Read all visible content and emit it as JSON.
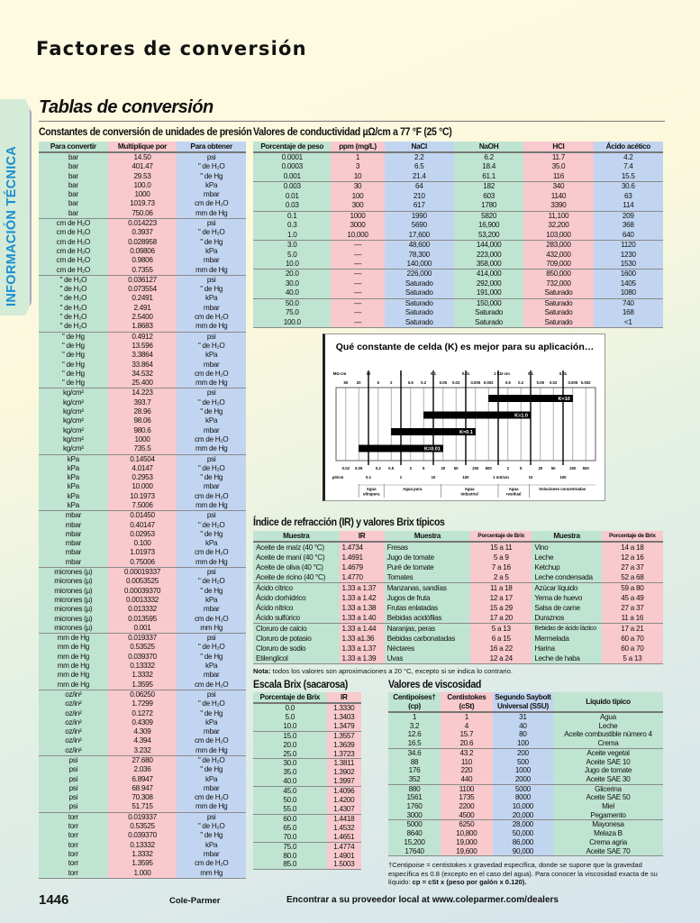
{
  "page": {
    "title": "Factores de conversión",
    "subtitle": "Tablas de conversión",
    "side_tab": "INFORMACIÓN TÉCNICA",
    "page_number": "1446",
    "brand": "Cole-Parmer",
    "footer_link": "Encontrar a su proveedor local at www.coleparmer.com/dealers"
  },
  "colors": {
    "green": "#bfe4d1",
    "pink": "#f8c9cd",
    "blue": "#c2d5f0",
    "side_tab_text": "#1a8fd0"
  },
  "pressure": {
    "title": "Constantes de conversión de unidades de presión",
    "headers": [
      "Para convertir",
      "Multiplique por",
      "Para obtener"
    ],
    "groups": [
      {
        "from": "bar",
        "rows": [
          [
            "14.50",
            "psi"
          ],
          [
            "401.47",
            "\" de H₂O"
          ],
          [
            "29.53",
            "\" de Hg"
          ],
          [
            "100.0",
            "kPa"
          ],
          [
            "1000",
            "mbar"
          ],
          [
            "1019.73",
            "cm de H₂O"
          ],
          [
            "750.06",
            "mm de Hg"
          ]
        ]
      },
      {
        "from": "cm de H₂O",
        "rows": [
          [
            "0.014223",
            "psi"
          ],
          [
            "0.3937",
            "\" de H₂O"
          ],
          [
            "0.028958",
            "\" de Hg"
          ],
          [
            "0.09806",
            "kPa"
          ],
          [
            "0.9806",
            "mbar"
          ],
          [
            "0.7355",
            "mm de Hg"
          ]
        ]
      },
      {
        "from": "\" de H₂O",
        "rows": [
          [
            "0.036127",
            "psi"
          ],
          [
            "0.073554",
            "\" de Hg"
          ],
          [
            "0.2491",
            "kPa"
          ],
          [
            "2.491",
            "mbar"
          ],
          [
            "2.5400",
            "cm de H₂O"
          ],
          [
            "1.8683",
            "mm de Hg"
          ]
        ]
      },
      {
        "from": "\" de Hg",
        "rows": [
          [
            "0.4912",
            "psi"
          ],
          [
            "13.596",
            "\" de H₂O"
          ],
          [
            "3.3864",
            "kPa"
          ],
          [
            "33.864",
            "mbar"
          ],
          [
            "34.532",
            "cm de H₂O"
          ],
          [
            "25.400",
            "mm de Hg"
          ]
        ]
      },
      {
        "from": "kg/cm²",
        "rows": [
          [
            "14.223",
            "psi"
          ],
          [
            "393.7",
            "\" de H₂O"
          ],
          [
            "28.96",
            "\" de Hg"
          ],
          [
            "98.06",
            "kPa"
          ],
          [
            "980.6",
            "mbar"
          ],
          [
            "1000",
            "cm de H₂O"
          ],
          [
            "735.5",
            "mm de Hg"
          ]
        ]
      },
      {
        "from": "kPa",
        "rows": [
          [
            "0.14504",
            "psi"
          ],
          [
            "4.0147",
            "\" de H₂O"
          ],
          [
            "0.2953",
            "\" de Hg"
          ],
          [
            "10.000",
            "mbar"
          ],
          [
            "10.1973",
            "cm de H₂O"
          ],
          [
            "7.5006",
            "mm de Hg"
          ]
        ]
      },
      {
        "from": "mbar",
        "rows": [
          [
            "0.01450",
            "psi"
          ],
          [
            "0.40147",
            "\" de H₂O"
          ],
          [
            "0.02953",
            "\" de Hg"
          ],
          [
            "0.100",
            "kPa"
          ],
          [
            "1.01973",
            "cm de H₂O"
          ],
          [
            "0.75006",
            "mm de Hg"
          ]
        ]
      },
      {
        "from": "micrones (µ)",
        "rows": [
          [
            "0.00019337",
            "psi"
          ],
          [
            "0.0053525",
            "\" de H₂O"
          ],
          [
            "0.00039370",
            "\" de Hg"
          ],
          [
            "0.0013332",
            "kPa"
          ],
          [
            "0.013332",
            "mbar"
          ],
          [
            "0.013595",
            "cm de H₂O"
          ],
          [
            "0.001",
            "mm Hg"
          ]
        ]
      },
      {
        "from": "mm de Hg",
        "rows": [
          [
            "0.019337",
            "psi"
          ],
          [
            "0.53525",
            "\" de H₂O"
          ],
          [
            "0.039370",
            "\" de Hg"
          ],
          [
            "0.13332",
            "kPa"
          ],
          [
            "1.3332",
            "mbar"
          ],
          [
            "1.3595",
            "cm de H₂O"
          ]
        ]
      },
      {
        "from": "oz/in²",
        "rows": [
          [
            "0.06250",
            "psi"
          ],
          [
            "1.7299",
            "\" de H₂O"
          ],
          [
            "0.1272",
            "\" de Hg"
          ],
          [
            "0.4309",
            "kPa"
          ],
          [
            "4.309",
            "mbar"
          ],
          [
            "4.394",
            "cm de H₂O"
          ],
          [
            "3.232",
            "mm de Hg"
          ]
        ]
      },
      {
        "from": "psi",
        "rows": [
          [
            "27.680",
            "\" de H₂O"
          ],
          [
            "2.036",
            "\" de Hg"
          ],
          [
            "6.8947",
            "kPa"
          ],
          [
            "68.947",
            "mbar"
          ],
          [
            "70.308",
            "cm de H₂O"
          ],
          [
            "51.715",
            "mm de Hg"
          ]
        ]
      },
      {
        "from": "torr",
        "rows": [
          [
            "0.019337",
            "psi"
          ],
          [
            "0.53525",
            "\" de H₂O"
          ],
          [
            "0.039370",
            "\" de Hg"
          ],
          [
            "0.13332",
            "kPa"
          ],
          [
            "1.3332",
            "mbar"
          ],
          [
            "1.3595",
            "cm de H₂O"
          ],
          [
            "1.000",
            "mm Hg"
          ]
        ]
      }
    ]
  },
  "conductivity": {
    "title": "Valores de conductividad µΩ/cm a 77 °F (25 °C)",
    "headers": [
      "Porcentaje de peso",
      "ppm (mg/L)",
      "NaCl",
      "NaOH",
      "HCl",
      "Ácido acético"
    ],
    "groups": [
      [
        [
          "0.0001",
          "1",
          "2.2",
          "6.2",
          "11.7",
          "4.2"
        ],
        [
          "0.0003",
          "3",
          "6.5",
          "18.4",
          "35.0",
          "7.4"
        ],
        [
          "0.001",
          "10",
          "21.4",
          "61.1",
          "116",
          "15.5"
        ]
      ],
      [
        [
          "0.003",
          "30",
          "64",
          "182",
          "340",
          "30.6"
        ],
        [
          "0.01",
          "100",
          "210",
          "603",
          "1140",
          "63"
        ],
        [
          "0.03",
          "300",
          "617",
          "1780",
          "3390",
          "114"
        ]
      ],
      [
        [
          "0.1",
          "1000",
          "1990",
          "5820",
          "11,100",
          "209"
        ],
        [
          "0.3",
          "3000",
          "5690",
          "16,900",
          "32,200",
          "368"
        ],
        [
          "1.0",
          "10,000",
          "17,600",
          "53,200",
          "103,000",
          "640"
        ]
      ],
      [
        [
          "3.0",
          "—",
          "48,600",
          "144,000",
          "283,000",
          "1120"
        ],
        [
          "5.0",
          "—",
          "78,300",
          "223,000",
          "432,000",
          "1230"
        ],
        [
          "10.0",
          "—",
          "140,000",
          "358,000",
          "709,000",
          "1530"
        ]
      ],
      [
        [
          "20.0",
          "—",
          "226,000",
          "414,000",
          "850,000",
          "1600"
        ],
        [
          "30.0",
          "—",
          "Saturado",
          "292,000",
          "732,000",
          "1405"
        ],
        [
          "40.0",
          "—",
          "Saturado",
          "191,000",
          "Saturado",
          "1080"
        ]
      ],
      [
        [
          "50.0",
          "—",
          "Saturado",
          "150,000",
          "Saturado",
          "740"
        ],
        [
          "75.0",
          "—",
          "Saturado",
          "Saturado",
          "Saturado",
          "168"
        ],
        [
          "100.0",
          "—",
          "Saturado",
          "Saturado",
          "Saturado",
          "<1"
        ]
      ]
    ]
  },
  "cell_chart": {
    "title": "Qué constante de celda (K) es mejor para su aplicación…",
    "top_unit": "MΩ·cm",
    "top_major": [
      {
        "v": 0.1,
        "t": "10"
      },
      {
        "v": 1,
        "t": "1"
      },
      {
        "v": 10,
        "t": "0.1"
      },
      {
        "v": 100,
        "t": "0.01"
      },
      {
        "v": 1000,
        "t": "1 KΩ·cm"
      },
      {
        "v": 10000,
        "t": "0.1"
      },
      {
        "v": 100000,
        "t": "0.01"
      }
    ],
    "top_minor": [
      {
        "v": 0.02,
        "t": "50"
      },
      {
        "v": 0.05,
        "t": "20"
      },
      {
        "v": 0.2,
        "t": "5"
      },
      {
        "v": 0.5,
        "t": "2"
      },
      {
        "v": 2,
        "t": "0.5"
      },
      {
        "v": 5,
        "t": "0.2"
      },
      {
        "v": 20,
        "t": "0.05"
      },
      {
        "v": 50,
        "t": "0.02"
      },
      {
        "v": 200,
        "t": "0.005"
      },
      {
        "v": 500,
        "t": "0.002"
      },
      {
        "v": 2000,
        "t": "0.5"
      },
      {
        "v": 5000,
        "t": "0.2"
      },
      {
        "v": 20000,
        "t": "0.05"
      },
      {
        "v": 50000,
        "t": "0.02"
      },
      {
        "v": 200000,
        "t": "0.005"
      },
      {
        "v": 500000,
        "t": "0.002"
      }
    ],
    "bottom_unit": "µS/cm",
    "bottom_major": [
      {
        "v": 0.1,
        "t": "0.1"
      },
      {
        "v": 1,
        "t": "1"
      },
      {
        "v": 10,
        "t": "10"
      },
      {
        "v": 100,
        "t": "100"
      },
      {
        "v": 1000,
        "t": "1 mS/cm"
      },
      {
        "v": 10000,
        "t": "10"
      },
      {
        "v": 100000,
        "t": "100"
      }
    ],
    "bottom_minor": [
      {
        "v": 0.02,
        "t": "0.02"
      },
      {
        "v": 0.05,
        "t": "0.05"
      },
      {
        "v": 0.2,
        "t": "0.2"
      },
      {
        "v": 0.5,
        "t": "0.5"
      },
      {
        "v": 2,
        "t": "2"
      },
      {
        "v": 5,
        "t": "5"
      },
      {
        "v": 20,
        "t": "20"
      },
      {
        "v": 50,
        "t": "50"
      },
      {
        "v": 200,
        "t": "200"
      },
      {
        "v": 500,
        "t": "500"
      },
      {
        "v": 2000,
        "t": "2"
      },
      {
        "v": 5000,
        "t": "5"
      },
      {
        "v": 20000,
        "t": "20"
      },
      {
        "v": 50000,
        "t": "50"
      },
      {
        "v": 200000,
        "t": "200"
      },
      {
        "v": 500000,
        "t": "500"
      }
    ],
    "range_uS_cm": [
      0.01,
      1000000
    ],
    "bars": [
      {
        "label": "K=10",
        "from": 500,
        "to": 200000
      },
      {
        "label": "K=1.0",
        "from": 5,
        "to": 10000
      },
      {
        "label": "K=0.1",
        "from": 0.5,
        "to": 200
      },
      {
        "label": "K=0.01",
        "from": 0.05,
        "to": 20
      }
    ],
    "applications": [
      {
        "label": "Agua ultrapura",
        "from": 0.05,
        "to": 0.3
      },
      {
        "label": "Agua pura",
        "from": 0.3,
        "to": 17
      },
      {
        "label": "Agua industrial",
        "from": 17,
        "to": 1000
      },
      {
        "label": "Agua residual",
        "from": 1000,
        "to": 9000
      },
      {
        "label": "Soluciones concentradas",
        "from": 9000,
        "to": 1000000
      }
    ]
  },
  "refraction": {
    "title": "Índice de refracción (IR) y valores Brix típicos",
    "headers": [
      "Muestra",
      "IR",
      "Muestra",
      "Porcentaje de Brix",
      "Muestra",
      "Porcentaje de Brix"
    ],
    "groups": [
      [
        [
          "Aceite de maíz (40 °C)",
          "1.4734",
          "Fresas",
          "15 a 11",
          "Vino",
          "14 a 18"
        ],
        [
          "Aceite de maní (40 °C)",
          "1.4691",
          "Jugo de tomate",
          "5 a 9",
          "Leche",
          "12 a 16"
        ],
        [
          "Aceite de oliva (40 °C)",
          "1.4679",
          "Puré de tomate",
          "7 a 16",
          "Ketchup",
          "27 a 37"
        ],
        [
          "Aceite de ricino (40 °C)",
          "1.4770",
          "Tomates",
          "2 a 5",
          "Leche condensada",
          "52 a 68"
        ]
      ],
      [
        [
          "Ácido cítrico",
          "1.33 a 1.37",
          "Manzanas, sandías",
          "11 a 18",
          "Azúcar líquido",
          "59 a 80"
        ],
        [
          "Ácido clorhídrico",
          "1.33 a 1.42",
          "Jugos de fruta",
          "12 a 17",
          "Yema de huevo",
          "45 a 49"
        ],
        [
          "Ácido nítrico",
          "1.33 a 1.38",
          "Frutas enlatadas",
          "15 a 29",
          "Salsa de carne",
          "27 a 37"
        ],
        [
          "Ácido sulfúrico",
          "1.33 a 1.40",
          "Bebidas acidófilas",
          "17 a 20",
          "Duraznos",
          "11 a 16"
        ]
      ],
      [
        [
          "Cloruro de calcio",
          "1.33 a 1.44",
          "Naranjas, peras",
          "5 a 13",
          "Bebidas de ácido láctico",
          "17 a 21"
        ],
        [
          "Cloruro de potasio",
          "1.33 a1.36",
          "Bebidas carbonatadas",
          "6 a 15",
          "Mermelada",
          "60 a 70"
        ],
        [
          "Cloruro de sodio",
          "1.33 a 1.37",
          "Néctares",
          "16 a 22",
          "Harina",
          "60 a 70"
        ],
        [
          "Etilenglicol",
          "1.33 a 1.39",
          "Uvas",
          "12 a 24",
          "Leche de haba",
          "5 a 13"
        ]
      ]
    ],
    "note_label": "Nota:",
    "note": " todos los valores son aproximaciones a 20 °C, excepto si se indica lo contrario."
  },
  "brix": {
    "title": "Escala Brix (sacarosa)",
    "headers": [
      "Porcentaje de Brix",
      "IR"
    ],
    "groups": [
      [
        [
          "0.0",
          "1.3330"
        ],
        [
          "5.0",
          "1.3403"
        ],
        [
          "10.0",
          "1.3479"
        ]
      ],
      [
        [
          "15.0",
          "1.3557"
        ],
        [
          "20.0",
          "1.3639"
        ],
        [
          "25.0",
          "1.3723"
        ]
      ],
      [
        [
          "30.0",
          "1.3811"
        ],
        [
          "35.0",
          "1.3902"
        ],
        [
          "40.0",
          "1.3997"
        ]
      ],
      [
        [
          "45.0",
          "1.4096"
        ],
        [
          "50.0",
          "1.4200"
        ],
        [
          "55.0",
          "1.4307"
        ]
      ],
      [
        [
          "60.0",
          "1.4418"
        ],
        [
          "65.0",
          "1.4532"
        ],
        [
          "70.0",
          "1.4651"
        ]
      ],
      [
        [
          "75.0",
          "1.4774"
        ],
        [
          "80.0",
          "1.4901"
        ],
        [
          "85.0",
          "1.5003"
        ]
      ]
    ]
  },
  "viscosity": {
    "title": "Valores de viscosidad",
    "headers": [
      "Centipoises† (cp)",
      "Centistokes (cSt)",
      "Segundo Saybolt Universal (SSU)",
      "Líquido típico"
    ],
    "groups": [
      [
        [
          "1",
          "1",
          "31",
          "Agua"
        ],
        [
          "3.2",
          "4",
          "40",
          "Leche"
        ],
        [
          "12.6",
          "15.7",
          "80",
          "Aceite combustible número 4"
        ],
        [
          "16.5",
          "20.6",
          "100",
          "Crema"
        ]
      ],
      [
        [
          "34.6",
          "43.2",
          "200",
          "Aceite vegetal"
        ],
        [
          "88",
          "110",
          "500",
          "Aceite SAE 10"
        ],
        [
          "176",
          "220",
          "1000",
          "Jugo de tomate"
        ],
        [
          "352",
          "440",
          "2000",
          "Aceite SAE 30"
        ]
      ],
      [
        [
          "880",
          "1100",
          "5000",
          "Glicerina"
        ],
        [
          "1561",
          "1735",
          "8000",
          "Aceite SAE 50"
        ],
        [
          "1760",
          "2200",
          "10,000",
          "Miel"
        ],
        [
          "3000",
          "4500",
          "20,000",
          "Pegamento"
        ]
      ],
      [
        [
          "5000",
          "6250",
          "28,000",
          "Mayonesa"
        ],
        [
          "8640",
          "10,800",
          "50,000",
          "Melaza B"
        ],
        [
          "15,200",
          "19,000",
          "86,000",
          "Crema agria"
        ],
        [
          "17640",
          "19,600",
          "90,000",
          "Aceite SAE 70"
        ]
      ]
    ],
    "footnote": "†Centipoise = centistokes x gravedad específica, donde se supone que la gravedad específica es 0.8 (excepto en el caso del agua). Para conocer la viscosidad exacta de su líquido: ",
    "footnote_formula": "cp = cSt x (peso por galón x 0.120)."
  }
}
